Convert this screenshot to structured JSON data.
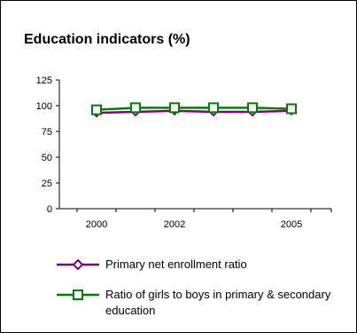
{
  "colors": {
    "enrollment": "#800080",
    "girls_ratio": "#008000"
  },
  "chart_data": {
    "type": "line",
    "title": "Education indicators (%)",
    "x": [
      2000,
      2001,
      2002,
      2003,
      2004,
      2005
    ],
    "x_tick_labels": [
      "2000",
      "2002",
      "2005"
    ],
    "ylim": [
      0,
      125
    ],
    "y_ticks": [
      0,
      25,
      50,
      75,
      100,
      125
    ],
    "grid": false,
    "legend_position": "bottom",
    "series": [
      {
        "name": "Primary net enrollment ratio",
        "marker": "diamond",
        "color": "#800080",
        "values": [
          93,
          94,
          95,
          94,
          94,
          95
        ]
      },
      {
        "name": "Ratio of girls to boys in primary & secondary education",
        "marker": "square",
        "color": "#008000",
        "values": [
          96,
          98,
          98,
          98,
          98,
          97
        ]
      }
    ]
  }
}
